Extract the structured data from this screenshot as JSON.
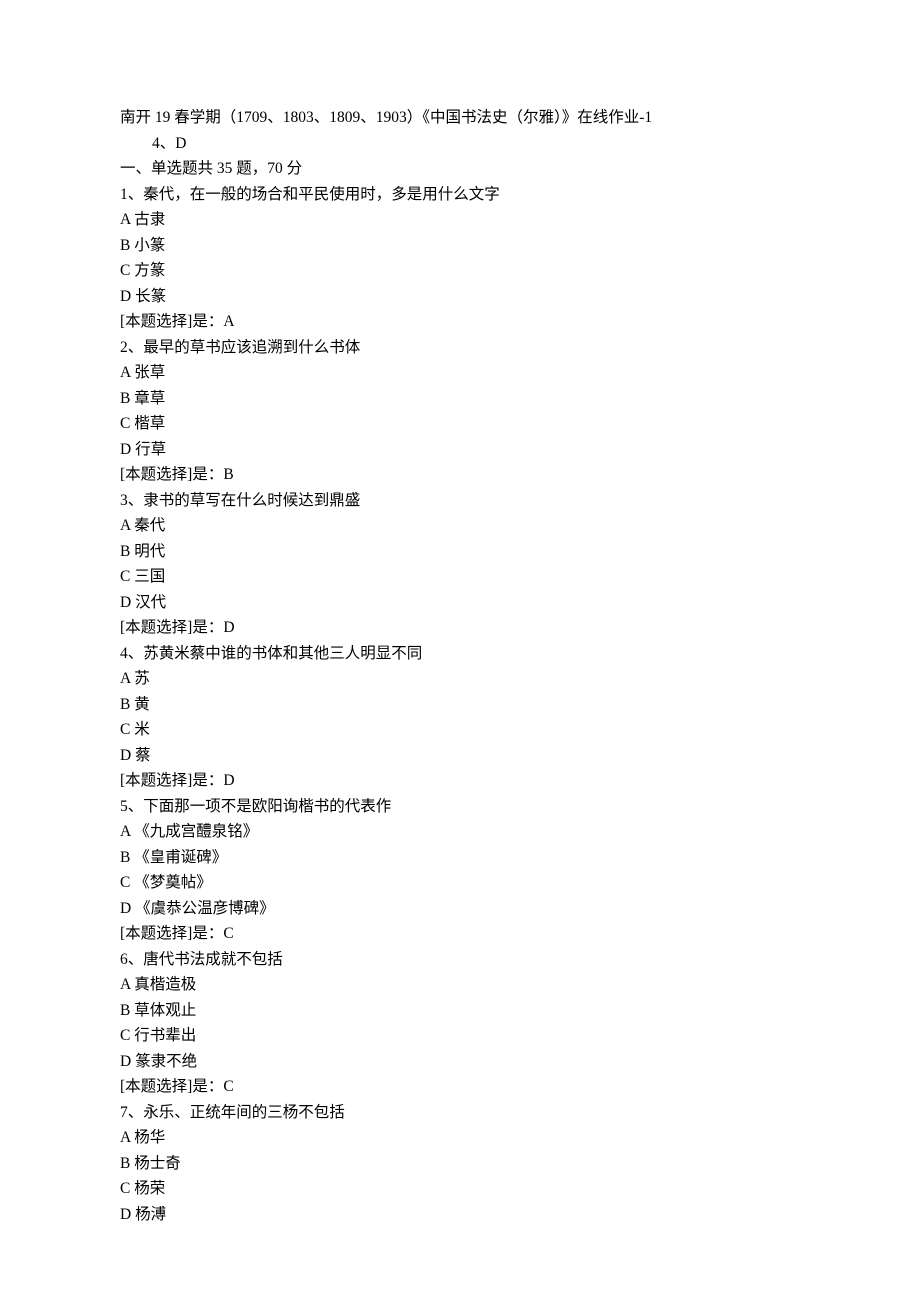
{
  "doc": {
    "fontsize": 15.5,
    "lineheight": 25.5,
    "text_color": "#000000",
    "background_color": "#ffffff",
    "font_family": "SimSun"
  },
  "header": {
    "title": "南开 19 春学期（1709、1803、1809、1903）《中国书法史（尔雅）》在线作业-1",
    "sub": "4、D",
    "section": "一、单选题共 35 题，70 分"
  },
  "questions": [
    {
      "n": "1",
      "text": "秦代，在一般的场合和平民使用时，多是用什么文字",
      "opts": {
        "A": "古隶",
        "B": "小篆",
        "C": "方篆",
        "D": "长篆"
      },
      "ans": "A"
    },
    {
      "n": "2",
      "text": "最早的草书应该追溯到什么书体",
      "opts": {
        "A": "张草",
        "B": "章草",
        "C": "楷草",
        "D": "行草"
      },
      "ans": "B"
    },
    {
      "n": "3",
      "text": "隶书的草写在什么时候达到鼎盛",
      "opts": {
        "A": "秦代",
        "B": "明代",
        "C": "三国",
        "D": "汉代"
      },
      "ans": "D"
    },
    {
      "n": "4",
      "text": "苏黄米蔡中谁的书体和其他三人明显不同",
      "opts": {
        "A": "苏",
        "B": "黄",
        "C": "米",
        "D": "蔡"
      },
      "ans": "D"
    },
    {
      "n": "5",
      "text": "下面那一项不是欧阳询楷书的代表作",
      "opts": {
        "A": "《九成宫醴泉铭》",
        "B": "《皇甫诞碑》",
        "C": "《梦奠帖》",
        "D": "《虞恭公温彦博碑》"
      },
      "ans": "C"
    },
    {
      "n": "6",
      "text": "唐代书法成就不包括",
      "opts": {
        "A": "真楷造极",
        "B": "草体观止",
        "C": "行书辈出",
        "D": "篆隶不绝"
      },
      "ans": "C"
    },
    {
      "n": "7",
      "text": "永乐、正统年间的三杨不包括",
      "opts": {
        "A": "杨华",
        "B": "杨士奇",
        "C": "杨荣",
        "D": "杨溥"
      },
      "ans": null
    }
  ],
  "labels": {
    "answer_prefix": "[本题选择]是："
  }
}
